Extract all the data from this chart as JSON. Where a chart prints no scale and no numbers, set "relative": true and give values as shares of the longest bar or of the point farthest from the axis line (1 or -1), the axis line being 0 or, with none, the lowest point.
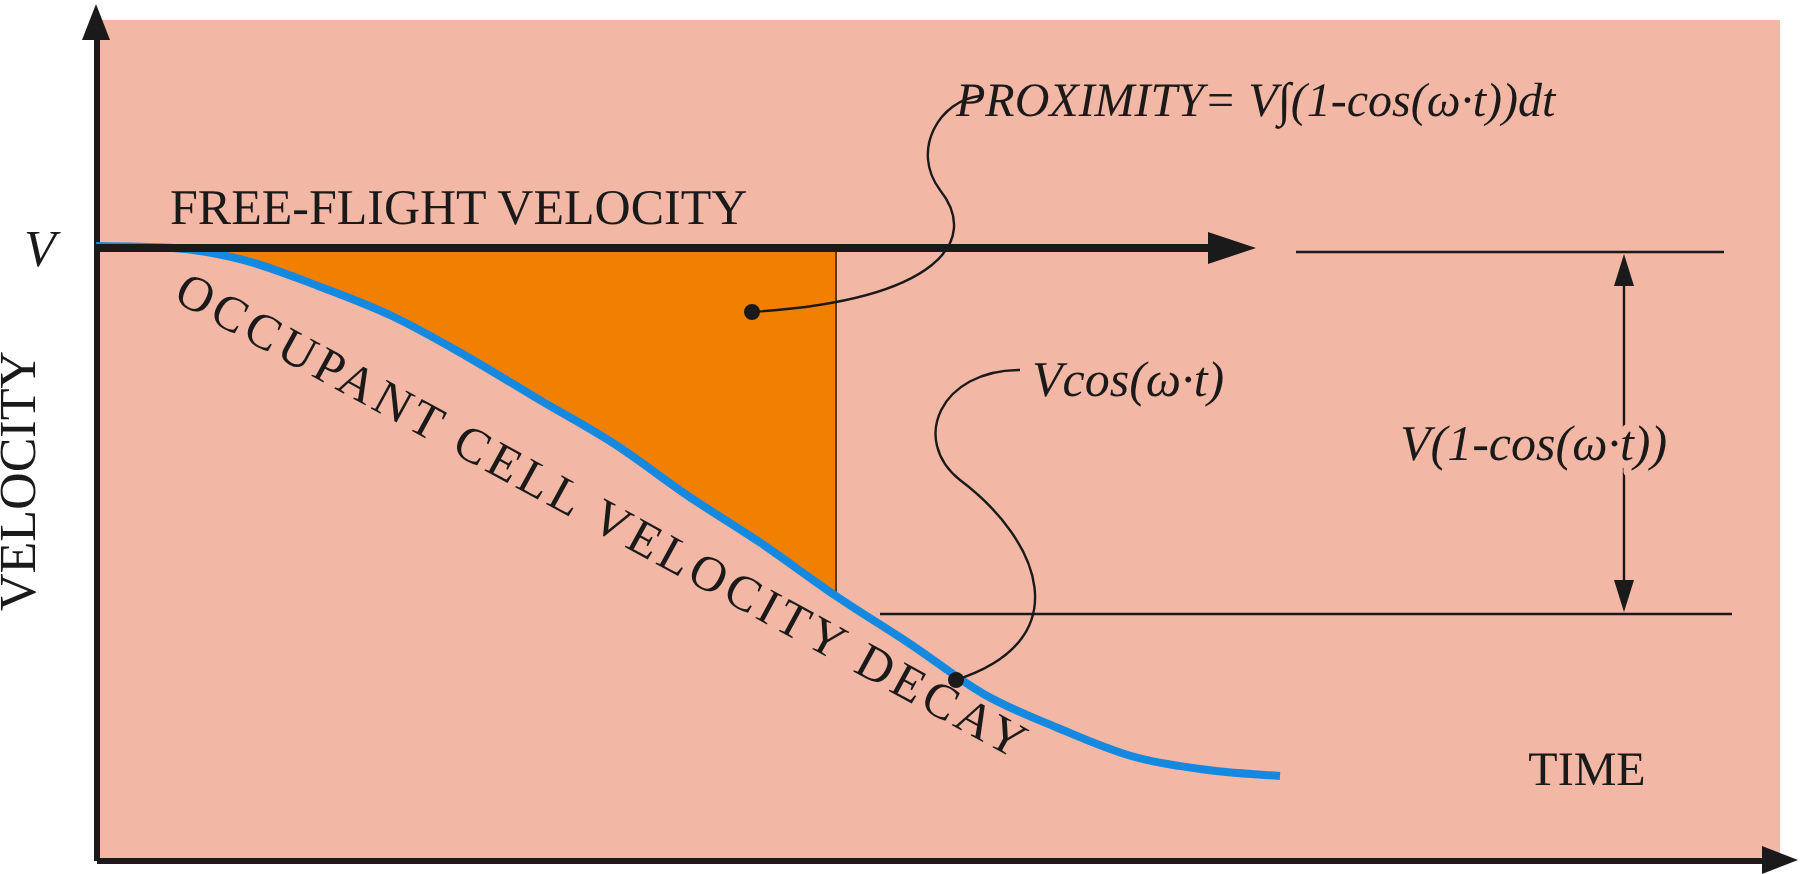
{
  "chart_data": {
    "type": "line",
    "xlabel": "TIME",
    "ylabel": "VELOCITY",
    "relative": true,
    "grid": false,
    "line_style": "solid",
    "marker": "none",
    "categories": [
      null,
      null,
      null,
      null,
      null,
      null,
      null,
      null,
      null,
      null,
      null,
      null,
      null,
      null,
      null,
      null,
      null,
      null,
      null,
      null,
      null,
      null,
      null
    ],
    "series": [
      {
        "name": "OCCUPANT CELL VELOCITY DECAY",
        "color": "#1589e0",
        "values": [
          1.0,
          0.997,
          0.977,
          0.935,
          0.886,
          0.821,
          0.749,
          0.678,
          0.593,
          0.515,
          0.43,
          0.352,
          0.27,
          0.215,
          0.169,
          0.147,
          0.137,
          null,
          null,
          null,
          null,
          null,
          null
        ]
      }
    ],
    "annotations": [
      "V",
      "PROXIMITY= V∫(1-cos(ω·t))dt",
      "Vcos(ω·t)",
      "V(1-cos(ω·t))",
      "FREE-FLIGHT VELOCITY"
    ]
  }
}
